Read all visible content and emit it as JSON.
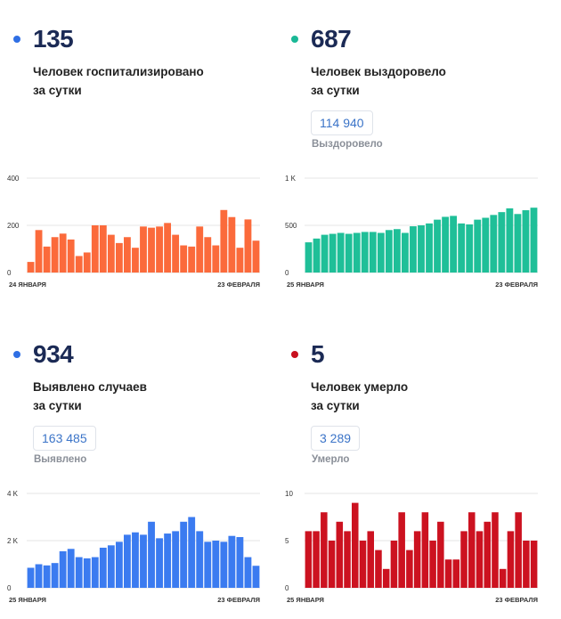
{
  "panels": [
    {
      "id": "hospitalized",
      "value": "135",
      "caption": "Человек госпитализировано\nза сутки",
      "dot_color": "#2f6fe4",
      "total": null,
      "total_label": null
    },
    {
      "id": "recovered",
      "value": "687",
      "caption": "Человек выздоровело\nза сутки",
      "dot_color": "#19b896",
      "total": "114 940",
      "total_label": "Выздоровело"
    },
    {
      "id": "cases",
      "value": "934",
      "caption": "Выявлено случаев\nза сутки",
      "dot_color": "#2f6fe4",
      "total": "163 485",
      "total_label": "Выявлено"
    },
    {
      "id": "deaths",
      "value": "5",
      "caption": "Человек умерло\nза сутки",
      "dot_color": "#c8101e",
      "total": "3 289",
      "total_label": "Умерло"
    }
  ],
  "chart_data": [
    {
      "type": "bar",
      "color": "#fb6a3b",
      "ylim": [
        0,
        400
      ],
      "yticks": [
        "400",
        "200",
        "0"
      ],
      "ytick_values": [
        400,
        200,
        0
      ],
      "x_start": "24 ЯНВАРЯ",
      "x_end": "23 ФЕВРАЛЯ",
      "values": [
        45,
        180,
        110,
        150,
        165,
        140,
        70,
        85,
        200,
        200,
        160,
        125,
        150,
        105,
        195,
        190,
        195,
        210,
        160,
        115,
        110,
        195,
        150,
        115,
        265,
        235,
        105,
        225,
        135
      ]
    },
    {
      "type": "bar",
      "color": "#1fbf98",
      "ylim": [
        0,
        1000
      ],
      "yticks": [
        "1 K",
        "500",
        "0"
      ],
      "ytick_values": [
        1000,
        500,
        0
      ],
      "x_start": "25 ЯНВАРЯ",
      "x_end": "23 ФЕВРАЛЯ",
      "values": [
        320,
        360,
        400,
        410,
        420,
        410,
        420,
        430,
        430,
        420,
        450,
        460,
        420,
        490,
        500,
        520,
        560,
        590,
        600,
        520,
        510,
        560,
        580,
        610,
        640,
        680,
        620,
        660,
        687
      ]
    },
    {
      "type": "bar",
      "color": "#3b7bf0",
      "ylim": [
        0,
        4000
      ],
      "yticks": [
        "4 K",
        "2 K",
        "0"
      ],
      "ytick_values": [
        4000,
        2000,
        0
      ],
      "x_start": "25 ЯНВАРЯ",
      "x_end": "23 ФЕВРАЛЯ",
      "values": [
        850,
        1000,
        950,
        1050,
        1550,
        1650,
        1300,
        1250,
        1300,
        1700,
        1800,
        1950,
        2250,
        2350,
        2250,
        2800,
        2100,
        2300,
        2400,
        2800,
        3000,
        2400,
        1950,
        2000,
        1950,
        2200,
        2150,
        1300,
        934
      ]
    },
    {
      "type": "bar",
      "color": "#cc1220",
      "ylim": [
        0,
        10
      ],
      "yticks": [
        "10",
        "5",
        "0"
      ],
      "ytick_values": [
        10,
        5,
        0
      ],
      "x_start": "25 ЯНВАРЯ",
      "x_end": "23 ФЕВРАЛЯ",
      "values": [
        6,
        6,
        8,
        5,
        7,
        6,
        9,
        5,
        6,
        4,
        2,
        5,
        8,
        4,
        6,
        8,
        5,
        7,
        3,
        3,
        6,
        8,
        6,
        7,
        8,
        2,
        6,
        8,
        5,
        5
      ]
    }
  ]
}
